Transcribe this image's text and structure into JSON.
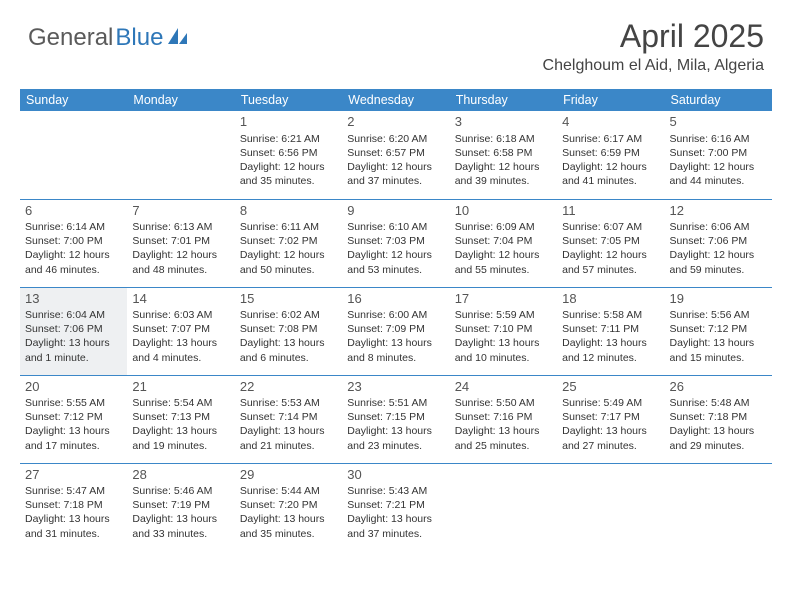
{
  "logo": {
    "part1": "General",
    "part2": "Blue"
  },
  "title": "April 2025",
  "location": "Chelghoum el Aid, Mila, Algeria",
  "colors": {
    "header_bg": "#3b87c8",
    "header_text": "#ffffff",
    "border": "#3b87c8",
    "shaded_bg": "#eef0f2",
    "text": "#333333",
    "logo_gray": "#5a5a5a",
    "logo_blue": "#2e77b8"
  },
  "day_headers": [
    "Sunday",
    "Monday",
    "Tuesday",
    "Wednesday",
    "Thursday",
    "Friday",
    "Saturday"
  ],
  "weeks": [
    [
      {
        "empty": true
      },
      {
        "empty": true
      },
      {
        "num": "1",
        "sunrise": "Sunrise: 6:21 AM",
        "sunset": "Sunset: 6:56 PM",
        "daylight": "Daylight: 12 hours and 35 minutes."
      },
      {
        "num": "2",
        "sunrise": "Sunrise: 6:20 AM",
        "sunset": "Sunset: 6:57 PM",
        "daylight": "Daylight: 12 hours and 37 minutes."
      },
      {
        "num": "3",
        "sunrise": "Sunrise: 6:18 AM",
        "sunset": "Sunset: 6:58 PM",
        "daylight": "Daylight: 12 hours and 39 minutes."
      },
      {
        "num": "4",
        "sunrise": "Sunrise: 6:17 AM",
        "sunset": "Sunset: 6:59 PM",
        "daylight": "Daylight: 12 hours and 41 minutes."
      },
      {
        "num": "5",
        "sunrise": "Sunrise: 6:16 AM",
        "sunset": "Sunset: 7:00 PM",
        "daylight": "Daylight: 12 hours and 44 minutes."
      }
    ],
    [
      {
        "num": "6",
        "sunrise": "Sunrise: 6:14 AM",
        "sunset": "Sunset: 7:00 PM",
        "daylight": "Daylight: 12 hours and 46 minutes."
      },
      {
        "num": "7",
        "sunrise": "Sunrise: 6:13 AM",
        "sunset": "Sunset: 7:01 PM",
        "daylight": "Daylight: 12 hours and 48 minutes."
      },
      {
        "num": "8",
        "sunrise": "Sunrise: 6:11 AM",
        "sunset": "Sunset: 7:02 PM",
        "daylight": "Daylight: 12 hours and 50 minutes."
      },
      {
        "num": "9",
        "sunrise": "Sunrise: 6:10 AM",
        "sunset": "Sunset: 7:03 PM",
        "daylight": "Daylight: 12 hours and 53 minutes."
      },
      {
        "num": "10",
        "sunrise": "Sunrise: 6:09 AM",
        "sunset": "Sunset: 7:04 PM",
        "daylight": "Daylight: 12 hours and 55 minutes."
      },
      {
        "num": "11",
        "sunrise": "Sunrise: 6:07 AM",
        "sunset": "Sunset: 7:05 PM",
        "daylight": "Daylight: 12 hours and 57 minutes."
      },
      {
        "num": "12",
        "sunrise": "Sunrise: 6:06 AM",
        "sunset": "Sunset: 7:06 PM",
        "daylight": "Daylight: 12 hours and 59 minutes."
      }
    ],
    [
      {
        "num": "13",
        "shaded": true,
        "sunrise": "Sunrise: 6:04 AM",
        "sunset": "Sunset: 7:06 PM",
        "daylight": "Daylight: 13 hours and 1 minute."
      },
      {
        "num": "14",
        "sunrise": "Sunrise: 6:03 AM",
        "sunset": "Sunset: 7:07 PM",
        "daylight": "Daylight: 13 hours and 4 minutes."
      },
      {
        "num": "15",
        "sunrise": "Sunrise: 6:02 AM",
        "sunset": "Sunset: 7:08 PM",
        "daylight": "Daylight: 13 hours and 6 minutes."
      },
      {
        "num": "16",
        "sunrise": "Sunrise: 6:00 AM",
        "sunset": "Sunset: 7:09 PM",
        "daylight": "Daylight: 13 hours and 8 minutes."
      },
      {
        "num": "17",
        "sunrise": "Sunrise: 5:59 AM",
        "sunset": "Sunset: 7:10 PM",
        "daylight": "Daylight: 13 hours and 10 minutes."
      },
      {
        "num": "18",
        "sunrise": "Sunrise: 5:58 AM",
        "sunset": "Sunset: 7:11 PM",
        "daylight": "Daylight: 13 hours and 12 minutes."
      },
      {
        "num": "19",
        "sunrise": "Sunrise: 5:56 AM",
        "sunset": "Sunset: 7:12 PM",
        "daylight": "Daylight: 13 hours and 15 minutes."
      }
    ],
    [
      {
        "num": "20",
        "sunrise": "Sunrise: 5:55 AM",
        "sunset": "Sunset: 7:12 PM",
        "daylight": "Daylight: 13 hours and 17 minutes."
      },
      {
        "num": "21",
        "sunrise": "Sunrise: 5:54 AM",
        "sunset": "Sunset: 7:13 PM",
        "daylight": "Daylight: 13 hours and 19 minutes."
      },
      {
        "num": "22",
        "sunrise": "Sunrise: 5:53 AM",
        "sunset": "Sunset: 7:14 PM",
        "daylight": "Daylight: 13 hours and 21 minutes."
      },
      {
        "num": "23",
        "sunrise": "Sunrise: 5:51 AM",
        "sunset": "Sunset: 7:15 PM",
        "daylight": "Daylight: 13 hours and 23 minutes."
      },
      {
        "num": "24",
        "sunrise": "Sunrise: 5:50 AM",
        "sunset": "Sunset: 7:16 PM",
        "daylight": "Daylight: 13 hours and 25 minutes."
      },
      {
        "num": "25",
        "sunrise": "Sunrise: 5:49 AM",
        "sunset": "Sunset: 7:17 PM",
        "daylight": "Daylight: 13 hours and 27 minutes."
      },
      {
        "num": "26",
        "sunrise": "Sunrise: 5:48 AM",
        "sunset": "Sunset: 7:18 PM",
        "daylight": "Daylight: 13 hours and 29 minutes."
      }
    ],
    [
      {
        "num": "27",
        "sunrise": "Sunrise: 5:47 AM",
        "sunset": "Sunset: 7:18 PM",
        "daylight": "Daylight: 13 hours and 31 minutes."
      },
      {
        "num": "28",
        "sunrise": "Sunrise: 5:46 AM",
        "sunset": "Sunset: 7:19 PM",
        "daylight": "Daylight: 13 hours and 33 minutes."
      },
      {
        "num": "29",
        "sunrise": "Sunrise: 5:44 AM",
        "sunset": "Sunset: 7:20 PM",
        "daylight": "Daylight: 13 hours and 35 minutes."
      },
      {
        "num": "30",
        "sunrise": "Sunrise: 5:43 AM",
        "sunset": "Sunset: 7:21 PM",
        "daylight": "Daylight: 13 hours and 37 minutes."
      },
      {
        "empty": true
      },
      {
        "empty": true
      },
      {
        "empty": true
      }
    ]
  ]
}
